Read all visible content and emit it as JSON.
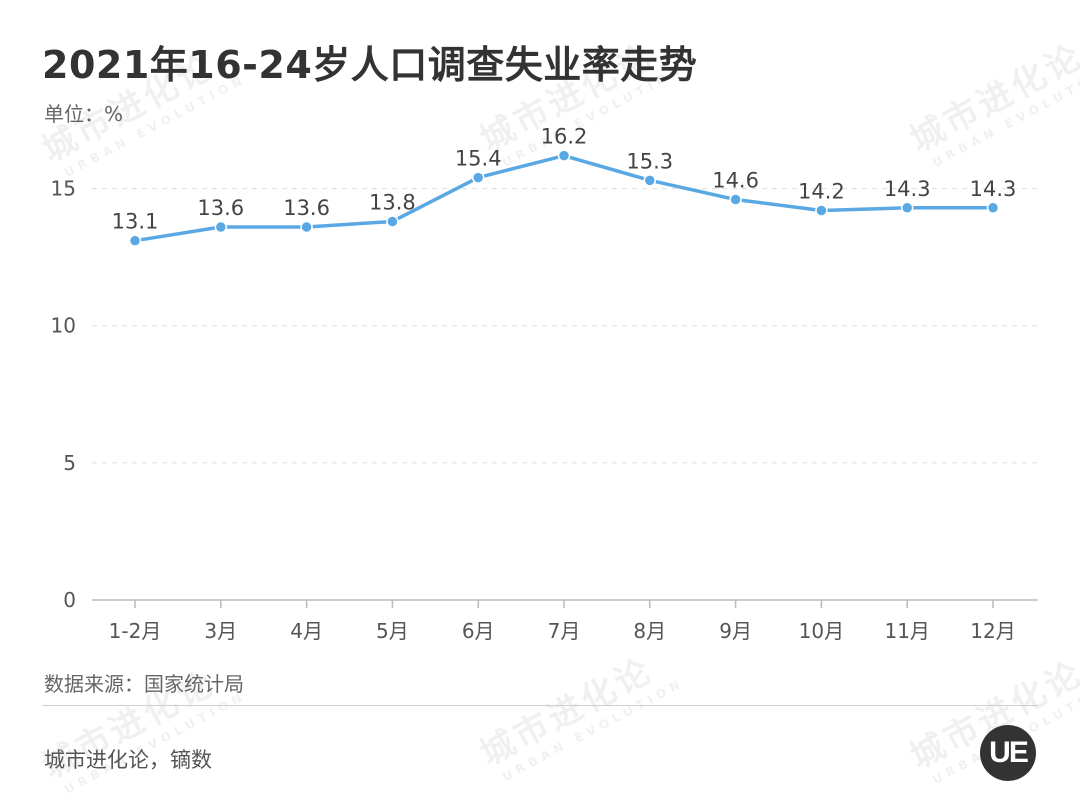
{
  "header": {
    "title": "2021年16-24岁人口调查失业率走势",
    "unit": "单位：%"
  },
  "footer": {
    "source": "数据来源：国家统计局",
    "credit": "城市进化论，镝数"
  },
  "watermark": {
    "cn": "城市进化论",
    "en": "URBAN EVOLUTION",
    "logo": "UE"
  },
  "colors": {
    "line": "#5aa8e3",
    "text": "#333333",
    "grid": "#dddddd",
    "axis": "#bbbbbb"
  },
  "chart_data": {
    "type": "line",
    "categories": [
      "1-2月",
      "3月",
      "4月",
      "5月",
      "6月",
      "7月",
      "8月",
      "9月",
      "10月",
      "11月",
      "12月"
    ],
    "series": [
      {
        "values": [
          13.1,
          13.6,
          13.6,
          13.8,
          15.4,
          16.2,
          15.3,
          14.6,
          14.2,
          14.3,
          14.3
        ]
      }
    ],
    "data_labels": [
      "13.1",
      "13.6",
      "13.6",
      "13.8",
      "15.4",
      "16.2",
      "15.3",
      "14.6",
      "14.2",
      "14.3",
      "14.3"
    ],
    "yticks": [
      0,
      5,
      10,
      15
    ],
    "ylim": [
      0,
      17.5
    ],
    "grid": true,
    "legend": "none"
  }
}
